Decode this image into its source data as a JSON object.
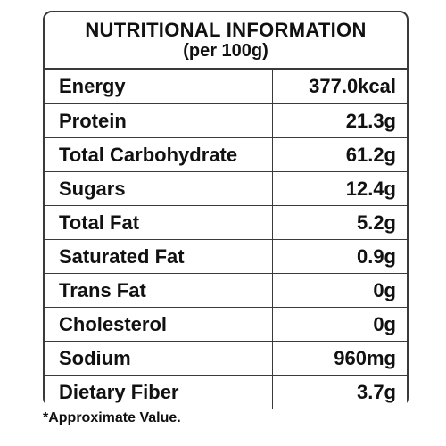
{
  "header": {
    "title": "NUTRITIONAL INFORMATION",
    "subtitle": "(per 100g)"
  },
  "rows": [
    {
      "label": "Energy",
      "value": "377.0kcal"
    },
    {
      "label": "Protein",
      "value": "21.3g"
    },
    {
      "label": "Total Carbohydrate",
      "value": "61.2g"
    },
    {
      "label": "Sugars",
      "value": "12.4g"
    },
    {
      "label": "Total Fat",
      "value": "5.2g"
    },
    {
      "label": "Saturated Fat",
      "value": "0.9g"
    },
    {
      "label": "Trans Fat",
      "value": "0g"
    },
    {
      "label": "Cholesterol",
      "value": "0g"
    },
    {
      "label": "Sodium",
      "value": "960mg"
    },
    {
      "label": "Dietary Fiber",
      "value": "3.7g"
    }
  ],
  "footnote": "*Approximate Value."
}
